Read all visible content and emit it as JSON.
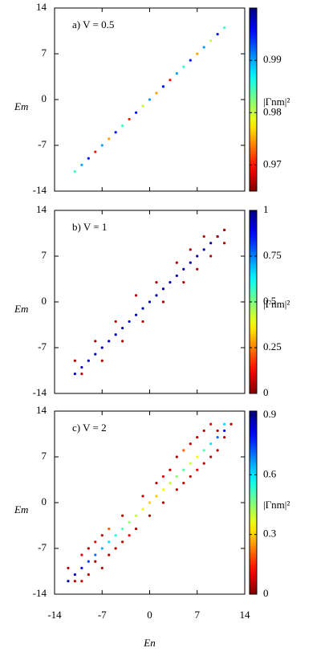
{
  "chart_data": [
    {
      "type": "scatter",
      "title": "a) V = 0.5",
      "ylabel": "Em",
      "colormap": "jet_r",
      "xlim": [
        -14,
        14
      ],
      "ylim": [
        -14,
        14
      ],
      "xticks": [
        -14,
        -7,
        0,
        7,
        14
      ],
      "yticks": [
        -14,
        -7,
        0,
        7,
        14
      ],
      "show_xtick_labels": false,
      "colorbar": {
        "label": "|Γnm|²",
        "lim": [
          0.965,
          1.0
        ],
        "ticks": [
          0.97,
          0.98,
          0.99
        ]
      },
      "x": [
        -11,
        -10,
        -9,
        -8,
        -7,
        -6,
        -5,
        -4,
        -3,
        -2,
        -1,
        0,
        1,
        2,
        3,
        4,
        5,
        6,
        7,
        8,
        9,
        10,
        11
      ],
      "y": [
        -11,
        -10,
        -9,
        -8,
        -7,
        -6,
        -5,
        -4,
        -3,
        -2,
        -1,
        0,
        1,
        2,
        3,
        4,
        5,
        6,
        7,
        8,
        9,
        10,
        11
      ],
      "z": [
        0.985,
        0.99,
        0.995,
        0.97,
        0.99,
        0.975,
        0.995,
        0.985,
        0.97,
        0.995,
        0.98,
        0.99,
        0.975,
        0.995,
        0.97,
        0.99,
        0.985,
        0.995,
        0.975,
        0.99,
        0.98,
        0.995,
        0.985
      ]
    },
    {
      "type": "scatter",
      "title": "b) V = 1",
      "ylabel": "Em",
      "colormap": "jet_r",
      "xlim": [
        -14,
        14
      ],
      "ylim": [
        -14,
        14
      ],
      "xticks": [
        -14,
        -7,
        0,
        7,
        14
      ],
      "yticks": [
        -14,
        -7,
        0,
        7,
        14
      ],
      "show_xtick_labels": false,
      "colorbar": {
        "label": "|Γnm|²",
        "lim": [
          0,
          1
        ],
        "ticks": [
          0,
          0.25,
          0.5,
          0.75,
          1
        ]
      },
      "x": [
        -11,
        -10,
        -9,
        -8,
        -7,
        -6,
        -5,
        -4,
        -3,
        -2,
        -1,
        0,
        1,
        2,
        3,
        4,
        5,
        6,
        7,
        8,
        9,
        10,
        11,
        -11,
        -10,
        -8,
        -7,
        -5,
        -4,
        -2,
        -1,
        1,
        2,
        4,
        5,
        6,
        7,
        8,
        9,
        10,
        11,
        11
      ],
      "y": [
        -11,
        -10,
        -9,
        -8,
        -7,
        -6,
        -5,
        -4,
        -3,
        -2,
        -1,
        0,
        1,
        2,
        3,
        4,
        5,
        6,
        7,
        8,
        9,
        10,
        11,
        -9,
        -11,
        -6,
        -9,
        -3,
        -6,
        1,
        -3,
        3,
        0,
        6,
        3,
        8,
        5,
        10,
        7,
        10,
        11,
        9
      ],
      "z": [
        0.95,
        0.95,
        0.95,
        0.95,
        0.95,
        0.95,
        0.95,
        0.95,
        0.95,
        0.95,
        0.95,
        0.95,
        0.95,
        0.95,
        0.95,
        0.95,
        0.95,
        0.95,
        0.95,
        0.95,
        0.95,
        0.95,
        0.95,
        0.05,
        0.05,
        0.05,
        0.05,
        0.05,
        0.05,
        0.05,
        0.05,
        0.05,
        0.05,
        0.05,
        0.05,
        0.05,
        0.05,
        0.05,
        0.05,
        0.05,
        0.05,
        0.05
      ]
    },
    {
      "type": "scatter",
      "title": "c) V = 2",
      "ylabel": "Em",
      "xlabel": "En",
      "colormap": "jet_r",
      "xlim": [
        -14,
        14
      ],
      "ylim": [
        -14,
        14
      ],
      "xticks": [
        -14,
        -7,
        0,
        7,
        14
      ],
      "yticks": [
        -14,
        -7,
        0,
        7,
        14
      ],
      "show_xtick_labels": true,
      "colorbar": {
        "label": "|Γnm|²",
        "lim": [
          0,
          0.92
        ],
        "ticks": [
          0,
          0.3,
          0.6,
          0.9
        ]
      },
      "x": [
        -12,
        -11,
        -10,
        -9,
        -8,
        -7,
        -6,
        -5,
        -4,
        -3,
        -2,
        -1,
        0,
        1,
        2,
        3,
        4,
        5,
        6,
        7,
        8,
        9,
        10,
        11,
        -12,
        -11,
        -10,
        -10,
        -9,
        -9,
        -8,
        -8,
        -7,
        -7,
        -6,
        -6,
        -5,
        -4,
        -4,
        -3,
        -2,
        -1,
        0,
        1,
        2,
        2,
        3,
        4,
        4,
        5,
        5,
        6,
        6,
        7,
        7,
        8,
        8,
        9,
        9,
        10,
        10,
        11,
        11,
        12
      ],
      "y": [
        -12,
        -11,
        -10,
        -9,
        -8,
        -7,
        -6,
        -5,
        -4,
        -3,
        -2,
        -1,
        0,
        1,
        2,
        3,
        4,
        5,
        6,
        7,
        8,
        9,
        10,
        11,
        -10,
        -12,
        -8,
        -12,
        -7,
        -11,
        -9,
        -6,
        -10,
        -5,
        -8,
        -4,
        -7,
        -2,
        -6,
        -5,
        -4,
        1,
        -2,
        3,
        0,
        4,
        5,
        2,
        7,
        3,
        8,
        4,
        9,
        5,
        10,
        6,
        11,
        7,
        12,
        8,
        11,
        10,
        12,
        12
      ],
      "z": [
        0.9,
        0.85,
        0.8,
        0.75,
        0.7,
        0.65,
        0.6,
        0.55,
        0.5,
        0.45,
        0.4,
        0.35,
        0.3,
        0.3,
        0.35,
        0.4,
        0.45,
        0.5,
        0.4,
        0.35,
        0.5,
        0.6,
        0.7,
        0.8,
        0.05,
        0.05,
        0.1,
        0.05,
        0.05,
        0.05,
        0.05,
        0.1,
        0.05,
        0.05,
        0.05,
        0.2,
        0.05,
        0.05,
        0.05,
        0.1,
        0.05,
        0.05,
        0.05,
        0.05,
        0.05,
        0.1,
        0.05,
        0.05,
        0.05,
        0.05,
        0.2,
        0.05,
        0.05,
        0.1,
        0.05,
        0.05,
        0.05,
        0.05,
        0.1,
        0.05,
        0.05,
        0.05,
        0.6,
        0.05
      ]
    }
  ]
}
